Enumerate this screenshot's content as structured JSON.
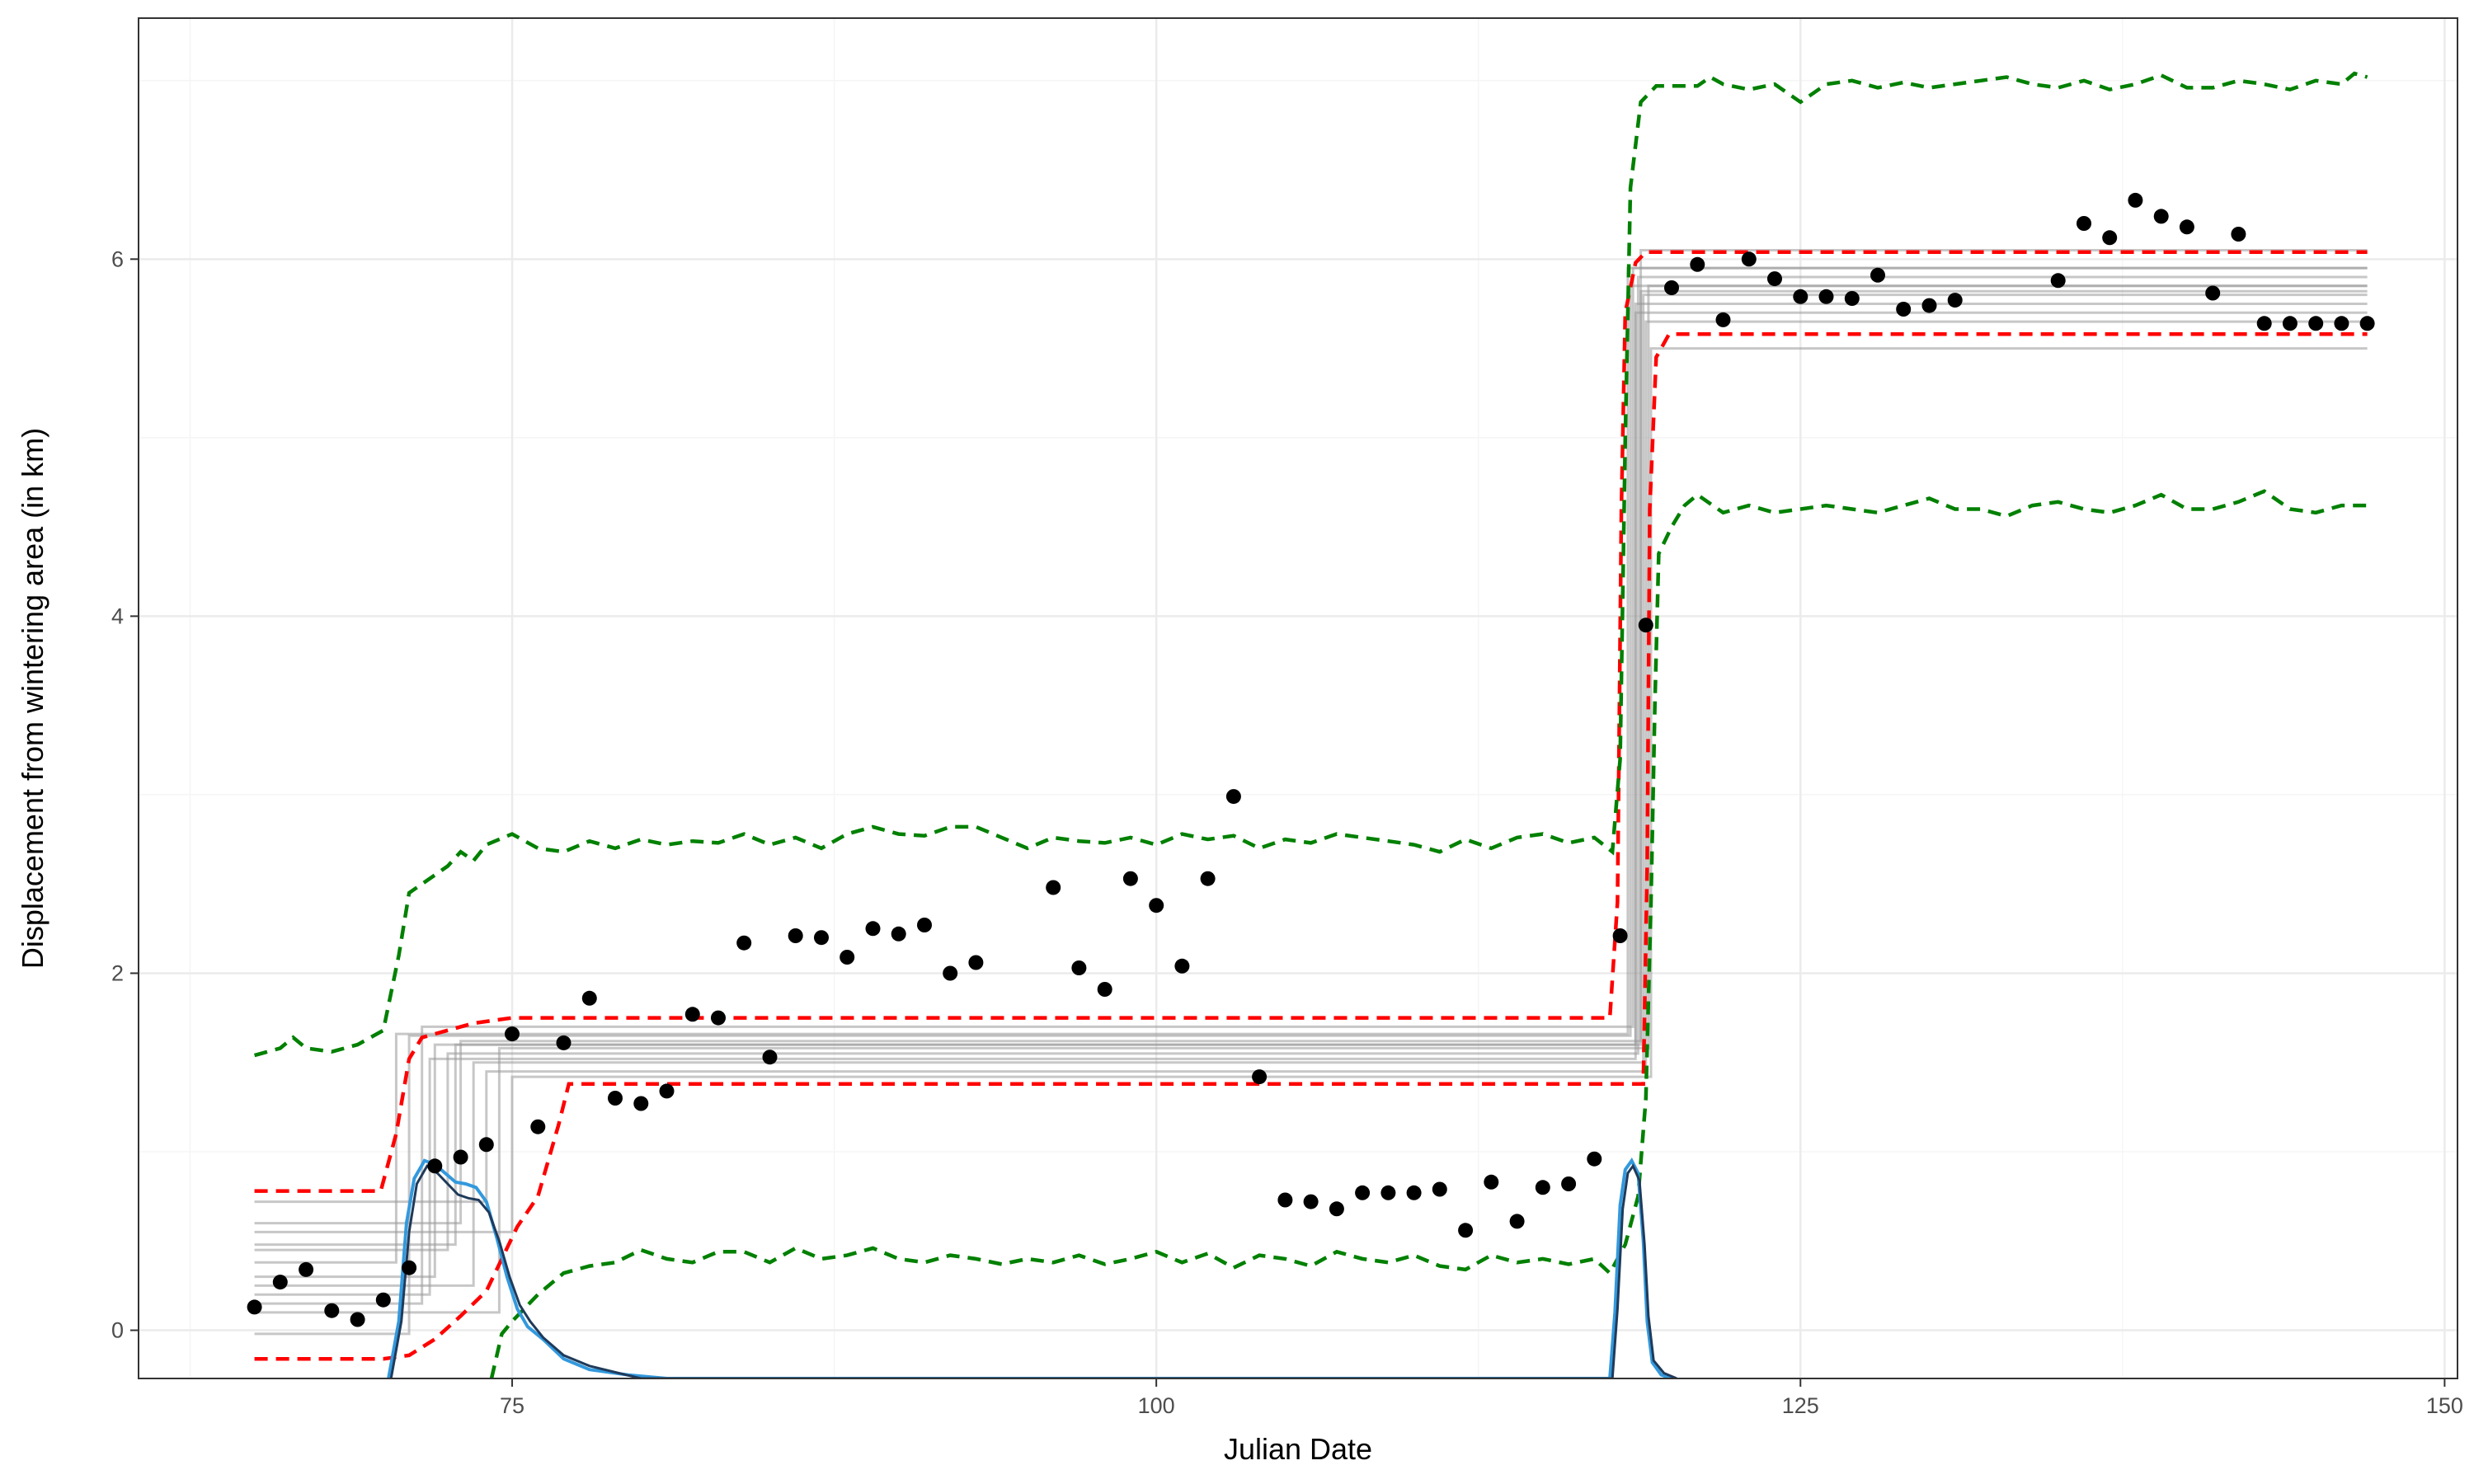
{
  "chart_data": {
    "type": "scatter",
    "title": "",
    "xlabel": "Julian Date",
    "ylabel": "Displacement from wintering area (in km)",
    "xlim": [
      60.5,
      150.5
    ],
    "ylim": [
      -0.27,
      7.35
    ],
    "x_ticks": [
      75,
      100,
      125,
      150
    ],
    "y_ticks": [
      0,
      2,
      4,
      6
    ],
    "grid": true,
    "colors": {
      "points": "#000000",
      "fit_lines": "#999999",
      "fit_interval": "#ff0000",
      "prediction_interval": "#008000",
      "density": "#3399dd",
      "density_dark": "#1f3a5a",
      "grid_major": "#ebebeb",
      "grid_minor": "#f5f5f5",
      "panel_border": "#333333"
    },
    "points": [
      [
        65,
        0.13
      ],
      [
        66,
        0.27
      ],
      [
        67,
        0.34
      ],
      [
        68,
        0.11
      ],
      [
        69,
        0.06
      ],
      [
        70,
        0.17
      ],
      [
        71,
        0.35
      ],
      [
        72,
        0.92
      ],
      [
        73,
        0.97
      ],
      [
        74,
        1.04
      ],
      [
        75,
        1.66
      ],
      [
        76,
        1.14
      ],
      [
        77,
        1.61
      ],
      [
        78,
        1.86
      ],
      [
        79,
        1.3
      ],
      [
        80,
        1.27
      ],
      [
        81,
        1.34
      ],
      [
        82,
        1.77
      ],
      [
        83,
        1.75
      ],
      [
        84,
        2.17
      ],
      [
        85,
        1.53
      ],
      [
        86,
        2.21
      ],
      [
        87,
        2.2
      ],
      [
        88,
        2.09
      ],
      [
        89,
        2.25
      ],
      [
        90,
        2.22
      ],
      [
        91,
        2.27
      ],
      [
        92,
        2.0
      ],
      [
        93,
        2.06
      ],
      [
        96,
        2.48
      ],
      [
        97,
        2.03
      ],
      [
        98,
        1.91
      ],
      [
        99,
        2.53
      ],
      [
        100,
        2.38
      ],
      [
        101,
        2.04
      ],
      [
        102,
        2.53
      ],
      [
        103,
        2.99
      ],
      [
        104,
        1.42
      ],
      [
        105,
        0.73
      ],
      [
        106,
        0.72
      ],
      [
        107,
        0.68
      ],
      [
        108,
        0.77
      ],
      [
        109,
        0.77
      ],
      [
        110,
        0.77
      ],
      [
        111,
        0.79
      ],
      [
        112,
        0.56
      ],
      [
        113,
        0.83
      ],
      [
        114,
        0.61
      ],
      [
        115,
        0.8
      ],
      [
        116,
        0.82
      ],
      [
        117,
        0.96
      ],
      [
        118,
        2.21
      ],
      [
        119,
        3.95
      ],
      [
        120,
        5.84
      ],
      [
        121,
        5.97
      ],
      [
        122,
        5.66
      ],
      [
        123,
        6.0
      ],
      [
        124,
        5.89
      ],
      [
        125,
        5.79
      ],
      [
        126,
        5.79
      ],
      [
        127,
        5.78
      ],
      [
        128,
        5.91
      ],
      [
        129,
        5.72
      ],
      [
        130,
        5.74
      ],
      [
        131,
        5.77
      ],
      [
        135,
        5.88
      ],
      [
        136,
        6.2
      ],
      [
        137,
        6.12
      ],
      [
        138,
        6.33
      ],
      [
        139,
        6.24
      ],
      [
        140,
        6.18
      ],
      [
        141,
        5.81
      ],
      [
        142,
        6.14
      ],
      [
        143,
        5.64
      ],
      [
        144,
        5.64
      ],
      [
        145,
        5.64
      ],
      [
        146,
        5.64
      ],
      [
        147,
        5.64
      ]
    ],
    "fit_lines": [
      {
        "levels": [
          -0.02,
          1.65,
          5.85
        ],
        "switch": [
          71.0,
          118.4
        ]
      },
      {
        "levels": [
          0.15,
          1.7,
          5.95
        ],
        "switch": [
          71.5,
          118.5
        ]
      },
      {
        "levels": [
          0.3,
          1.6,
          5.75
        ],
        "switch": [
          72.0,
          118.6
        ]
      },
      {
        "levels": [
          0.45,
          1.55,
          5.9
        ],
        "switch": [
          72.5,
          118.7
        ]
      },
      {
        "levels": [
          0.6,
          1.62,
          6.05
        ],
        "switch": [
          73.0,
          118.8
        ]
      },
      {
        "levels": [
          0.25,
          1.5,
          5.8
        ],
        "switch": [
          73.5,
          118.9
        ]
      },
      {
        "levels": [
          0.72,
          1.45,
          5.65
        ],
        "switch": [
          74.0,
          119.0
        ]
      },
      {
        "levels": [
          0.1,
          1.58,
          5.85
        ],
        "switch": [
          74.5,
          119.1
        ]
      },
      {
        "levels": [
          0.38,
          1.66,
          5.95
        ],
        "switch": [
          70.5,
          118.3
        ]
      },
      {
        "levels": [
          0.55,
          1.42,
          5.5
        ],
        "switch": [
          75.0,
          119.2
        ]
      },
      {
        "levels": [
          0.2,
          1.52,
          5.7
        ],
        "switch": [
          71.8,
          118.6
        ]
      },
      {
        "levels": [
          0.48,
          1.6,
          5.82
        ],
        "switch": [
          72.8,
          118.8
        ]
      }
    ],
    "fit_interval_upper": [
      [
        65,
        0.78
      ],
      [
        69.9,
        0.78
      ],
      [
        70.5,
        1.1
      ],
      [
        71,
        1.52
      ],
      [
        71.5,
        1.64
      ],
      [
        73.5,
        1.72
      ],
      [
        75,
        1.75
      ],
      [
        117.6,
        1.75
      ],
      [
        117.9,
        2.4
      ],
      [
        118.05,
        4.6
      ],
      [
        118.2,
        5.7
      ],
      [
        118.6,
        5.98
      ],
      [
        119,
        6.04
      ],
      [
        147,
        6.04
      ]
    ],
    "fit_interval_lower": [
      [
        65,
        -0.16
      ],
      [
        70,
        -0.16
      ],
      [
        71,
        -0.14
      ],
      [
        72,
        -0.05
      ],
      [
        73,
        0.08
      ],
      [
        74,
        0.22
      ],
      [
        75.2,
        0.58
      ],
      [
        76,
        0.75
      ],
      [
        76.8,
        1.15
      ],
      [
        77.2,
        1.38
      ],
      [
        118.9,
        1.38
      ],
      [
        119.05,
        2.6
      ],
      [
        119.15,
        4.6
      ],
      [
        119.4,
        5.45
      ],
      [
        119.9,
        5.58
      ],
      [
        147,
        5.58
      ]
    ],
    "pred_interval_upper": [
      [
        65,
        1.54
      ],
      [
        66,
        1.58
      ],
      [
        66.5,
        1.64
      ],
      [
        67,
        1.58
      ],
      [
        68,
        1.56
      ],
      [
        69,
        1.6
      ],
      [
        70,
        1.68
      ],
      [
        70.6,
        2.1
      ],
      [
        71,
        2.45
      ],
      [
        71.5,
        2.5
      ],
      [
        72,
        2.55
      ],
      [
        72.5,
        2.6
      ],
      [
        73,
        2.68
      ],
      [
        73.5,
        2.63
      ],
      [
        74,
        2.72
      ],
      [
        74.5,
        2.75
      ],
      [
        75,
        2.78
      ],
      [
        76,
        2.7
      ],
      [
        77,
        2.68
      ],
      [
        78,
        2.74
      ],
      [
        79,
        2.7
      ],
      [
        80,
        2.75
      ],
      [
        81,
        2.72
      ],
      [
        82,
        2.74
      ],
      [
        83,
        2.73
      ],
      [
        84,
        2.78
      ],
      [
        85,
        2.72
      ],
      [
        86,
        2.76
      ],
      [
        87,
        2.7
      ],
      [
        88,
        2.78
      ],
      [
        89,
        2.82
      ],
      [
        90,
        2.78
      ],
      [
        91,
        2.77
      ],
      [
        92,
        2.82
      ],
      [
        93,
        2.82
      ],
      [
        94,
        2.76
      ],
      [
        95,
        2.7
      ],
      [
        96,
        2.76
      ],
      [
        97,
        2.74
      ],
      [
        98,
        2.73
      ],
      [
        99,
        2.76
      ],
      [
        100,
        2.72
      ],
      [
        101,
        2.78
      ],
      [
        102,
        2.75
      ],
      [
        103,
        2.77
      ],
      [
        104,
        2.7
      ],
      [
        105,
        2.75
      ],
      [
        106,
        2.73
      ],
      [
        107,
        2.78
      ],
      [
        108,
        2.76
      ],
      [
        109,
        2.74
      ],
      [
        110,
        2.72
      ],
      [
        111,
        2.68
      ],
      [
        112,
        2.75
      ],
      [
        113,
        2.7
      ],
      [
        114,
        2.76
      ],
      [
        115,
        2.78
      ],
      [
        116,
        2.73
      ],
      [
        117,
        2.76
      ],
      [
        117.7,
        2.68
      ],
      [
        118,
        3.2
      ],
      [
        118.2,
        5.0
      ],
      [
        118.4,
        6.4
      ],
      [
        118.8,
        6.88
      ],
      [
        119.4,
        6.97
      ],
      [
        120,
        6.97
      ],
      [
        121,
        6.97
      ],
      [
        121.5,
        7.02
      ],
      [
        122,
        6.98
      ],
      [
        123,
        6.95
      ],
      [
        124,
        6.98
      ],
      [
        125,
        6.88
      ],
      [
        126,
        6.98
      ],
      [
        127,
        7.0
      ],
      [
        128,
        6.96
      ],
      [
        129,
        6.99
      ],
      [
        130,
        6.96
      ],
      [
        131,
        6.98
      ],
      [
        132,
        7.0
      ],
      [
        133,
        7.02
      ],
      [
        134,
        6.98
      ],
      [
        135,
        6.96
      ],
      [
        136,
        7.0
      ],
      [
        137,
        6.95
      ],
      [
        138,
        6.98
      ],
      [
        139,
        7.03
      ],
      [
        140,
        6.96
      ],
      [
        141,
        6.96
      ],
      [
        142,
        7.0
      ],
      [
        143,
        6.98
      ],
      [
        144,
        6.95
      ],
      [
        145,
        7.0
      ],
      [
        146,
        6.98
      ],
      [
        146.5,
        7.04
      ],
      [
        147,
        7.02
      ]
    ],
    "pred_interval_lower": [
      [
        74.2,
        -0.27
      ],
      [
        74.6,
        -0.02
      ],
      [
        75,
        0.05
      ],
      [
        76,
        0.2
      ],
      [
        77,
        0.32
      ],
      [
        78,
        0.36
      ],
      [
        79,
        0.38
      ],
      [
        80,
        0.45
      ],
      [
        81,
        0.4
      ],
      [
        82,
        0.38
      ],
      [
        83,
        0.44
      ],
      [
        84,
        0.44
      ],
      [
        85,
        0.38
      ],
      [
        86,
        0.46
      ],
      [
        87,
        0.4
      ],
      [
        88,
        0.42
      ],
      [
        89,
        0.46
      ],
      [
        90,
        0.4
      ],
      [
        91,
        0.38
      ],
      [
        92,
        0.42
      ],
      [
        93,
        0.4
      ],
      [
        94,
        0.37
      ],
      [
        95,
        0.4
      ],
      [
        96,
        0.38
      ],
      [
        97,
        0.42
      ],
      [
        98,
        0.37
      ],
      [
        99,
        0.4
      ],
      [
        100,
        0.44
      ],
      [
        101,
        0.38
      ],
      [
        102,
        0.43
      ],
      [
        103,
        0.35
      ],
      [
        104,
        0.42
      ],
      [
        105,
        0.4
      ],
      [
        106,
        0.36
      ],
      [
        107,
        0.44
      ],
      [
        108,
        0.4
      ],
      [
        109,
        0.38
      ],
      [
        110,
        0.42
      ],
      [
        111,
        0.36
      ],
      [
        112,
        0.34
      ],
      [
        113,
        0.42
      ],
      [
        114,
        0.38
      ],
      [
        115,
        0.4
      ],
      [
        116,
        0.37
      ],
      [
        117,
        0.4
      ],
      [
        117.6,
        0.32
      ],
      [
        118.2,
        0.48
      ],
      [
        118.7,
        0.75
      ],
      [
        119,
        1.3
      ],
      [
        119.2,
        2.4
      ],
      [
        119.35,
        3.5
      ],
      [
        119.5,
        4.35
      ],
      [
        120,
        4.5
      ],
      [
        120.5,
        4.62
      ],
      [
        121,
        4.68
      ],
      [
        122,
        4.58
      ],
      [
        123,
        4.62
      ],
      [
        124,
        4.58
      ],
      [
        125,
        4.6
      ],
      [
        126,
        4.62
      ],
      [
        127,
        4.6
      ],
      [
        128,
        4.58
      ],
      [
        129,
        4.62
      ],
      [
        130,
        4.66
      ],
      [
        131,
        4.6
      ],
      [
        132,
        4.6
      ],
      [
        133,
        4.56
      ],
      [
        134,
        4.62
      ],
      [
        135,
        4.64
      ],
      [
        136,
        4.6
      ],
      [
        137,
        4.58
      ],
      [
        138,
        4.62
      ],
      [
        139,
        4.68
      ],
      [
        140,
        4.6
      ],
      [
        141,
        4.6
      ],
      [
        142,
        4.64
      ],
      [
        143,
        4.7
      ],
      [
        144,
        4.6
      ],
      [
        145,
        4.58
      ],
      [
        146,
        4.62
      ],
      [
        147,
        4.62
      ]
    ],
    "density": [
      [
        70.2,
        -0.27
      ],
      [
        70.6,
        0.05
      ],
      [
        70.9,
        0.6
      ],
      [
        71.2,
        0.85
      ],
      [
        71.6,
        0.95
      ],
      [
        72,
        0.93
      ],
      [
        72.4,
        0.88
      ],
      [
        72.8,
        0.83
      ],
      [
        73.2,
        0.82
      ],
      [
        73.6,
        0.8
      ],
      [
        74,
        0.72
      ],
      [
        74.4,
        0.52
      ],
      [
        74.8,
        0.3
      ],
      [
        75.2,
        0.12
      ],
      [
        75.6,
        0.02
      ],
      [
        76.2,
        -0.05
      ],
      [
        77,
        -0.16
      ],
      [
        78,
        -0.22
      ],
      [
        79.5,
        -0.25
      ],
      [
        81,
        -0.27
      ],
      [
        117.6,
        -0.27
      ],
      [
        117.8,
        0.1
      ],
      [
        118.0,
        0.7
      ],
      [
        118.2,
        0.9
      ],
      [
        118.45,
        0.95
      ],
      [
        118.7,
        0.88
      ],
      [
        118.9,
        0.5
      ],
      [
        119.05,
        0.05
      ],
      [
        119.25,
        -0.18
      ],
      [
        119.6,
        -0.25
      ],
      [
        120,
        -0.27
      ]
    ],
    "density_dark": [
      [
        70.3,
        -0.27
      ],
      [
        70.7,
        0.05
      ],
      [
        71.0,
        0.55
      ],
      [
        71.3,
        0.82
      ],
      [
        71.7,
        0.92
      ],
      [
        72.1,
        0.88
      ],
      [
        72.5,
        0.82
      ],
      [
        72.9,
        0.76
      ],
      [
        73.3,
        0.74
      ],
      [
        73.7,
        0.73
      ],
      [
        74.1,
        0.66
      ],
      [
        74.5,
        0.5
      ],
      [
        74.9,
        0.3
      ],
      [
        75.3,
        0.14
      ],
      [
        75.7,
        0.05
      ],
      [
        76.2,
        -0.04
      ],
      [
        77,
        -0.14
      ],
      [
        78,
        -0.2
      ],
      [
        80,
        -0.27
      ],
      [
        117.7,
        -0.27
      ],
      [
        117.9,
        0.12
      ],
      [
        118.1,
        0.68
      ],
      [
        118.3,
        0.88
      ],
      [
        118.5,
        0.92
      ],
      [
        118.75,
        0.84
      ],
      [
        118.95,
        0.48
      ],
      [
        119.1,
        0.08
      ],
      [
        119.3,
        -0.17
      ],
      [
        119.7,
        -0.24
      ],
      [
        120.2,
        -0.27
      ]
    ]
  }
}
